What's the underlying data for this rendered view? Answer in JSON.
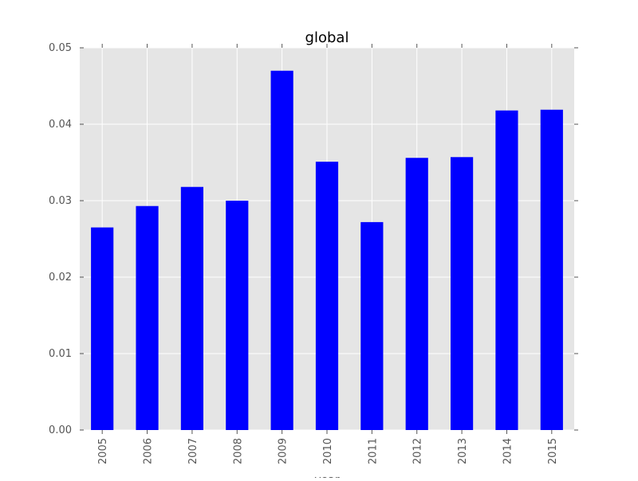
{
  "chart_data": {
    "type": "bar",
    "title": "global",
    "xlabel": "year",
    "ylabel": "",
    "categories": [
      "2005",
      "2006",
      "2007",
      "2008",
      "2009",
      "2010",
      "2011",
      "2012",
      "2013",
      "2014",
      "2015"
    ],
    "values": [
      0.0265,
      0.0293,
      0.0318,
      0.03,
      0.047,
      0.0351,
      0.0272,
      0.0356,
      0.0357,
      0.0418,
      0.0419
    ],
    "ylim": [
      0,
      0.05
    ],
    "yticks": [
      "0.00",
      "0.01",
      "0.02",
      "0.03",
      "0.04",
      "0.05"
    ],
    "grid": true,
    "legend": "none",
    "colors": {
      "bar": "#0000ff",
      "plot_background": "#e5e5e5",
      "grid": "#ffffff",
      "tick_text": "#555555"
    }
  }
}
